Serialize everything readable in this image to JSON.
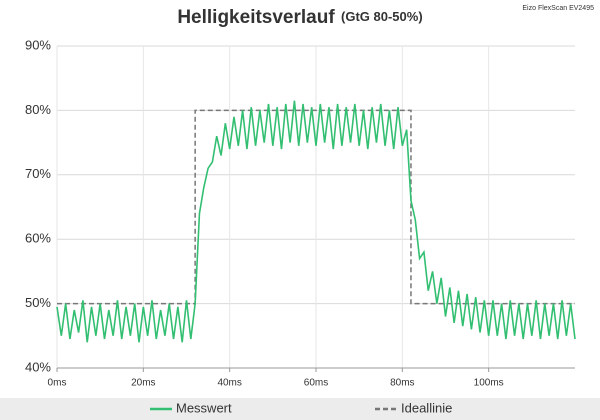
{
  "chart_data": {
    "type": "line",
    "title": "Helligkeitsverlauf",
    "title_suffix": "(GtG 80-50%)",
    "subtitle": "Eizo FlexScan EV2495",
    "xlim": [
      0,
      120
    ],
    "ylim": [
      40,
      90
    ],
    "xticks": [
      {
        "value": 0,
        "label": "0ms"
      },
      {
        "value": 20,
        "label": "20ms"
      },
      {
        "value": 40,
        "label": "40ms"
      },
      {
        "value": 60,
        "label": "60ms"
      },
      {
        "value": 80,
        "label": "80ms"
      },
      {
        "value": 100,
        "label": "100ms"
      }
    ],
    "yticks": [
      {
        "value": 40,
        "label": "40%"
      },
      {
        "value": 50,
        "label": "50%"
      },
      {
        "value": 60,
        "label": "60%"
      },
      {
        "value": 70,
        "label": "70%"
      },
      {
        "value": 80,
        "label": "80%"
      },
      {
        "value": 90,
        "label": "90%"
      }
    ],
    "grid": true,
    "legend": "bottom",
    "series": [
      {
        "name": "Ideallinie",
        "color": "#777777",
        "dashed": true,
        "x": [
          0,
          32,
          32,
          82,
          82,
          120
        ],
        "values": [
          50,
          50,
          80,
          80,
          50,
          50
        ]
      },
      {
        "name": "Messwert",
        "color": "#33bf72",
        "dashed": false,
        "x": [
          0,
          1,
          2,
          3,
          4,
          5,
          6,
          7,
          8,
          9,
          10,
          11,
          12,
          13,
          14,
          15,
          16,
          17,
          18,
          19,
          20,
          21,
          22,
          23,
          24,
          25,
          26,
          27,
          28,
          29,
          30,
          31,
          32,
          33,
          34,
          35,
          36,
          37,
          38,
          39,
          40,
          41,
          42,
          43,
          44,
          45,
          46,
          47,
          48,
          49,
          50,
          51,
          52,
          53,
          54,
          55,
          56,
          57,
          58,
          59,
          60,
          61,
          62,
          63,
          64,
          65,
          66,
          67,
          68,
          69,
          70,
          71,
          72,
          73,
          74,
          75,
          76,
          77,
          78,
          79,
          80,
          81,
          82,
          83,
          84,
          85,
          86,
          87,
          88,
          89,
          90,
          91,
          92,
          93,
          94,
          95,
          96,
          97,
          98,
          99,
          100,
          101,
          102,
          103,
          104,
          105,
          106,
          107,
          108,
          109,
          110,
          111,
          112,
          113,
          114,
          115,
          116,
          117,
          118,
          119,
          120
        ],
        "values": [
          49.5,
          45,
          50,
          44.5,
          49,
          45.5,
          50.5,
          44,
          49.5,
          45,
          50,
          44.5,
          49,
          45,
          50.5,
          44.5,
          49.5,
          45,
          50,
          44,
          49.5,
          45,
          50.5,
          44.5,
          49,
          45,
          50,
          44.5,
          49.5,
          44,
          50.5,
          44.5,
          50,
          64,
          68,
          71,
          72,
          76,
          73,
          78,
          74,
          79,
          74.5,
          80,
          74,
          80.5,
          74.5,
          80,
          75,
          81,
          74.5,
          80.5,
          74,
          81,
          75,
          81.5,
          74.5,
          81,
          75,
          80.5,
          74.5,
          81,
          75,
          80.5,
          74,
          81,
          74.5,
          80.5,
          75,
          81,
          74.5,
          80,
          74,
          80.5,
          75,
          81,
          74.5,
          80,
          74,
          80.5,
          74.5,
          77,
          66,
          63,
          57,
          58,
          52,
          55,
          50,
          54,
          48,
          52.5,
          47,
          52,
          46.5,
          51.5,
          46,
          51,
          45.5,
          50.5,
          45,
          50.5,
          45,
          50,
          44.5,
          50.5,
          45,
          50,
          44.5,
          50,
          45,
          50.5,
          44.5,
          50,
          45,
          50,
          44.5,
          50.5,
          45,
          50,
          44.5
        ]
      }
    ]
  }
}
